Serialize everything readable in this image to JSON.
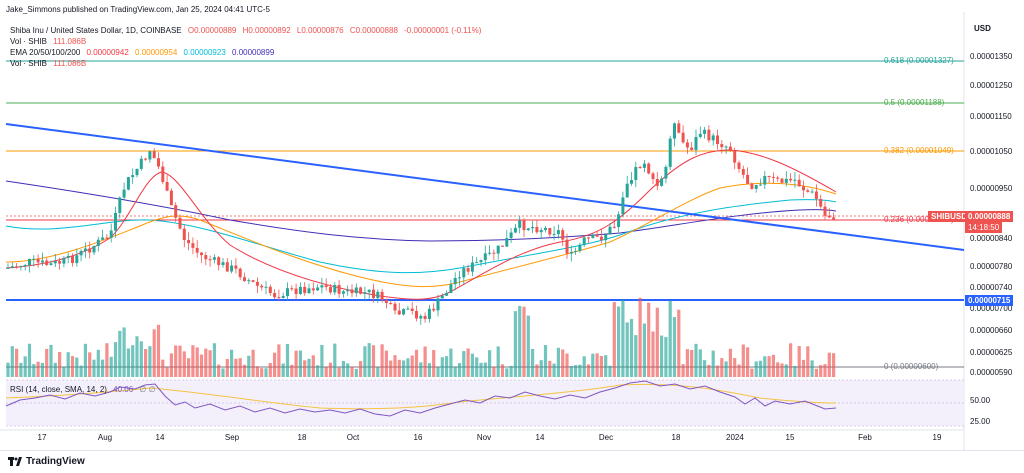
{
  "header": {
    "published": "Jake_Simmons published on TradingView.com, Jan 25, 2024 04:41 UTC-5"
  },
  "legend": {
    "symbol_line": "Shiba Inu / United States Dollar, 1D, COINBASE",
    "o": "O0.00000889",
    "h": "H0.00000892",
    "l": "L0.00000876",
    "c": "C0.00000888",
    "chg": "-0.00000001 (-0.11%)",
    "vol1_label": "Vol · SHIB",
    "vol1_value": "111.086B",
    "ema_label": "EMA 20/50/100/200",
    "ema20": "0.00000942",
    "ema50": "0.00000954",
    "ema100": "0.00000923",
    "ema200": "0.00000899",
    "vol2_label": "Vol · SHIB",
    "vol2_value": "111.086B",
    "rsi_label": "RSI (14, close, SMA, 14, 2)",
    "rsi_value": "40.06",
    "rsi_icons": "∅  ∅"
  },
  "price_axis": {
    "currency": "USD",
    "ticks": [
      "0.00001350",
      "0.00001250",
      "0.00001150",
      "0.00001050",
      "0.00000950",
      "0.00000840",
      "0.00000780",
      "0.00000740",
      "0.00000700",
      "0.00000660",
      "0.00000625",
      "0.00000590"
    ],
    "rsi_ticks": [
      "50.00",
      "25.00"
    ]
  },
  "time_axis": {
    "labels": [
      "17",
      "Aug",
      "14",
      "Sep",
      "18",
      "Oct",
      "16",
      "Nov",
      "14",
      "Dec",
      "18",
      "2024",
      "15",
      "Feb",
      "19"
    ]
  },
  "fib_levels": [
    {
      "label": "0.618 (0.00001327)",
      "color": "#26a69a"
    },
    {
      "label": "0.5 (0.00001188)",
      "color": "#4caf50"
    },
    {
      "label": "0.382 (0.00001049)",
      "color": "#ff9800"
    },
    {
      "label": "0.236 (0.00000876)",
      "color": "#f23645"
    },
    {
      "label": "0 (0.00000600)",
      "color": "#787b86"
    }
  ],
  "tags": {
    "symbol": "SHIBUSD",
    "last_price": "0.00000888",
    "countdown": "14:18:50",
    "support_price": "0.00000715"
  },
  "colors": {
    "up": "#26a69a",
    "down": "#ef5350",
    "support_line": "#2962ff",
    "trendline": "#2962ff",
    "ema20": "#f23645",
    "ema50": "#ff9800",
    "ema100": "#00bcd4",
    "ema200": "#3f2eb5",
    "rsi": "#7e57c2",
    "rsi_ma": "#f5c242"
  },
  "footer": {
    "brand": "TradingView"
  }
}
